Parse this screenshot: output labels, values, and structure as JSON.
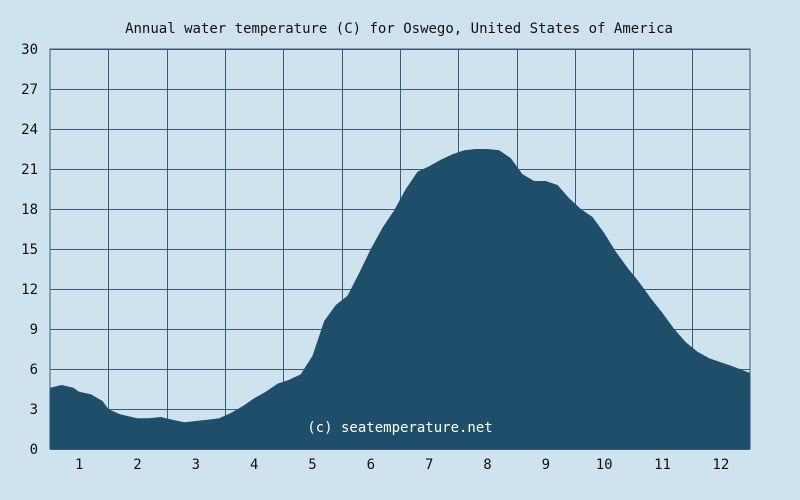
{
  "colors": {
    "background": "#cfe3ee",
    "area_fill": "#1f4e6b",
    "grid": "#3a5a78",
    "text": "#111111",
    "watermark": "#ffffff"
  },
  "watermark": "(c) seatemperature.net",
  "chart_data": {
    "type": "area",
    "title": "Annual water temperature (C) for Oswego, United States of America",
    "xlabel": "",
    "ylabel": "",
    "x_categories": [
      "1",
      "2",
      "3",
      "4",
      "5",
      "6",
      "7",
      "8",
      "9",
      "10",
      "11",
      "12"
    ],
    "xlim": [
      0.5,
      12.5
    ],
    "y_ticks": [
      0,
      3,
      6,
      9,
      12,
      15,
      18,
      21,
      24,
      27,
      30
    ],
    "ylim": [
      0,
      30
    ],
    "grid": true,
    "legend": "none",
    "series": [
      {
        "x": [
          0.5,
          0.7,
          0.9,
          1.0,
          1.2,
          1.4,
          1.5,
          1.7,
          1.9,
          2.0,
          2.2,
          2.4,
          2.6,
          2.8,
          3.0,
          3.2,
          3.4,
          3.6,
          3.8,
          4.0,
          4.2,
          4.4,
          4.6,
          4.8,
          5.0,
          5.2,
          5.4,
          5.6,
          5.8,
          6.0,
          6.2,
          6.4,
          6.6,
          6.8,
          7.0,
          7.2,
          7.4,
          7.6,
          7.8,
          8.0,
          8.2,
          8.4,
          8.6,
          8.8,
          9.0,
          9.2,
          9.4,
          9.6,
          9.8,
          10.0,
          10.2,
          10.4,
          10.6,
          10.8,
          11.0,
          11.2,
          11.4,
          11.6,
          11.8,
          12.0,
          12.2,
          12.5
        ],
        "values": [
          4.6,
          4.8,
          4.6,
          4.3,
          4.1,
          3.6,
          3.0,
          2.6,
          2.4,
          2.3,
          2.3,
          2.4,
          2.2,
          2.0,
          2.1,
          2.2,
          2.3,
          2.7,
          3.2,
          3.8,
          4.3,
          4.9,
          5.2,
          5.6,
          7.0,
          9.6,
          10.8,
          11.5,
          13.2,
          15.0,
          16.6,
          17.9,
          19.5,
          20.8,
          21.2,
          21.7,
          22.1,
          22.4,
          22.5,
          22.5,
          22.4,
          21.8,
          20.6,
          20.1,
          20.1,
          19.8,
          18.8,
          18.0,
          17.4,
          16.2,
          14.8,
          13.6,
          12.5,
          11.3,
          10.2,
          9.0,
          8.0,
          7.3,
          6.8,
          6.5,
          6.2,
          5.7
        ]
      }
    ]
  }
}
